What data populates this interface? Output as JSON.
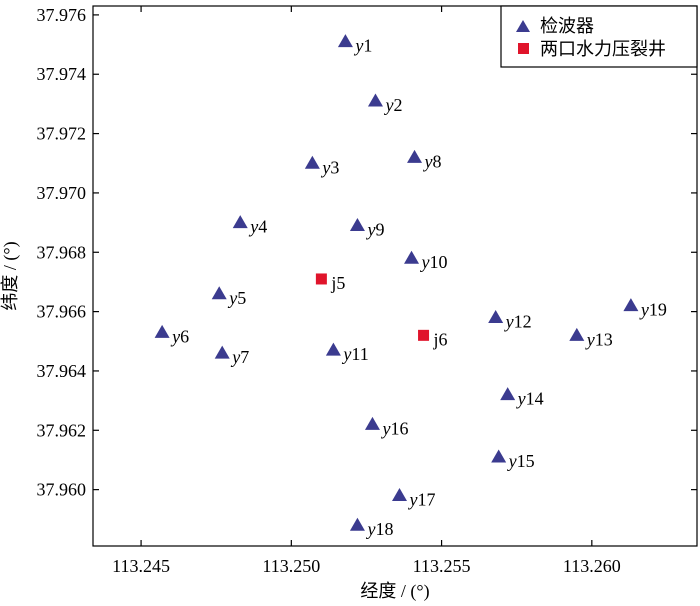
{
  "chart_data": {
    "type": "scatter",
    "xlabel": "经度 / (°)",
    "ylabel": "纬度 / (°)",
    "xlim": [
      113.2434,
      113.2635
    ],
    "ylim": [
      37.9581,
      37.9763
    ],
    "xticks": [
      "113.245",
      "113.250",
      "113.255",
      "113.260"
    ],
    "yticks": [
      "37.960",
      "37.962",
      "37.964",
      "37.966",
      "37.968",
      "37.970",
      "37.972",
      "37.974",
      "37.976"
    ],
    "grid": false,
    "legend_position": "top-right",
    "legend": [
      {
        "label": "检波器",
        "marker": "triangle",
        "color": "#3b3b8f"
      },
      {
        "label": "两口水力压裂井",
        "marker": "square",
        "color": "#e0142b"
      }
    ],
    "series": [
      {
        "name": "检波器",
        "marker": "triangle",
        "color": "#3b3b8f",
        "points": [
          {
            "label": "y1",
            "x": 113.2518,
            "y": 37.9751
          },
          {
            "label": "y2",
            "x": 113.2528,
            "y": 37.9731
          },
          {
            "label": "y3",
            "x": 113.2507,
            "y": 37.971
          },
          {
            "label": "y4",
            "x": 113.2483,
            "y": 37.969
          },
          {
            "label": "y5",
            "x": 113.2476,
            "y": 37.9666
          },
          {
            "label": "y6",
            "x": 113.2457,
            "y": 37.9653
          },
          {
            "label": "y7",
            "x": 113.2477,
            "y": 37.9646
          },
          {
            "label": "y8",
            "x": 113.2541,
            "y": 37.9712
          },
          {
            "label": "y9",
            "x": 113.2522,
            "y": 37.9689
          },
          {
            "label": "y10",
            "x": 113.254,
            "y": 37.9678
          },
          {
            "label": "y11",
            "x": 113.2514,
            "y": 37.9647
          },
          {
            "label": "y12",
            "x": 113.2568,
            "y": 37.9658
          },
          {
            "label": "y13",
            "x": 113.2595,
            "y": 37.9652
          },
          {
            "label": "y14",
            "x": 113.2572,
            "y": 37.9632
          },
          {
            "label": "y15",
            "x": 113.2569,
            "y": 37.9611
          },
          {
            "label": "y16",
            "x": 113.2527,
            "y": 37.9622
          },
          {
            "label": "y17",
            "x": 113.2536,
            "y": 37.9598
          },
          {
            "label": "y18",
            "x": 113.2522,
            "y": 37.9588
          },
          {
            "label": "y19",
            "x": 113.2613,
            "y": 37.9662
          }
        ]
      },
      {
        "name": "两口水力压裂井",
        "marker": "square",
        "color": "#e0142b",
        "points": [
          {
            "label": "j5",
            "x": 113.251,
            "y": 37.9671
          },
          {
            "label": "j6",
            "x": 113.2544,
            "y": 37.9652
          }
        ]
      }
    ]
  }
}
